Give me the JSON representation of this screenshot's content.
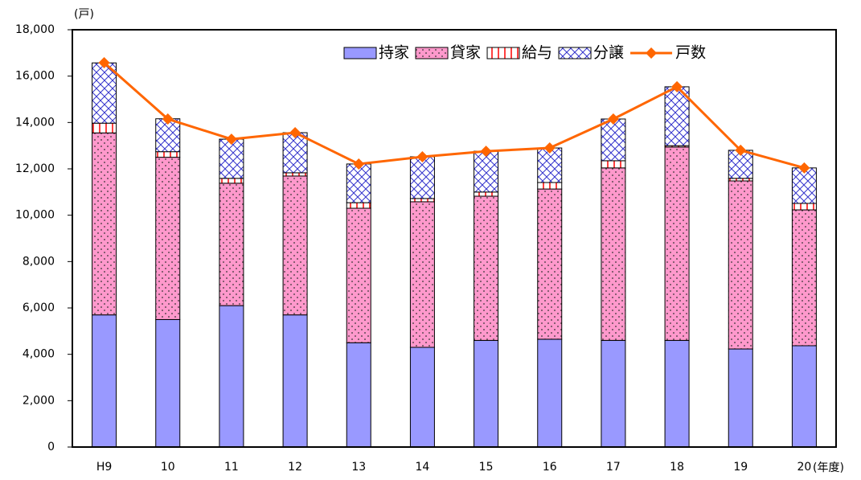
{
  "chart_data": {
    "type": "bar",
    "y_label": "(戸)",
    "x_label": "(年度)",
    "categories": [
      "H9",
      "10",
      "11",
      "12",
      "13",
      "14",
      "15",
      "16",
      "17",
      "18",
      "19",
      "20"
    ],
    "series": [
      {
        "name": "持家",
        "type": "bar",
        "color": "#9999ff",
        "pattern": "solid",
        "values": [
          5700,
          5500,
          6100,
          5700,
          4500,
          4300,
          4600,
          4650,
          4600,
          4600,
          4230,
          4370
        ]
      },
      {
        "name": "貸家",
        "type": "bar",
        "color": "#ff99cc",
        "pattern": "dots",
        "values": [
          7850,
          7000,
          5280,
          5990,
          5800,
          6280,
          6220,
          6480,
          7440,
          8340,
          7250,
          5860
        ]
      },
      {
        "name": "給与",
        "type": "bar",
        "color": "#ff0000",
        "pattern": "grid",
        "values": [
          420,
          240,
          210,
          140,
          240,
          140,
          180,
          280,
          310,
          60,
          110,
          280
        ]
      },
      {
        "name": "分譲",
        "type": "bar",
        "color": "#3333cc",
        "pattern": "cross",
        "values": [
          2600,
          1420,
          1690,
          1730,
          1670,
          1800,
          1760,
          1490,
          1800,
          2540,
          1210,
          1530
        ]
      },
      {
        "name": "戸数",
        "type": "line",
        "color": "#ff6600",
        "values": [
          16580,
          14150,
          13280,
          13560,
          12210,
          12520,
          12760,
          12900,
          14150,
          15540,
          12800,
          12040
        ]
      }
    ],
    "ylim": [
      0,
      18000
    ],
    "yticks": [
      0,
      {
        "value": 2000,
        "label": "2,000"
      },
      {
        "value": 4000,
        "label": "4,000"
      },
      {
        "value": 6000,
        "label": "6,000"
      },
      {
        "value": 8000,
        "label": "8,000"
      },
      {
        "value": 10000,
        "label": "10,000"
      },
      {
        "value": 12000,
        "label": "12,000"
      },
      {
        "value": 14000,
        "label": "14,000"
      },
      {
        "value": 16000,
        "label": "16,000"
      },
      {
        "value": 18000,
        "label": "18,000"
      }
    ],
    "grid": false,
    "legend": "top-right"
  }
}
